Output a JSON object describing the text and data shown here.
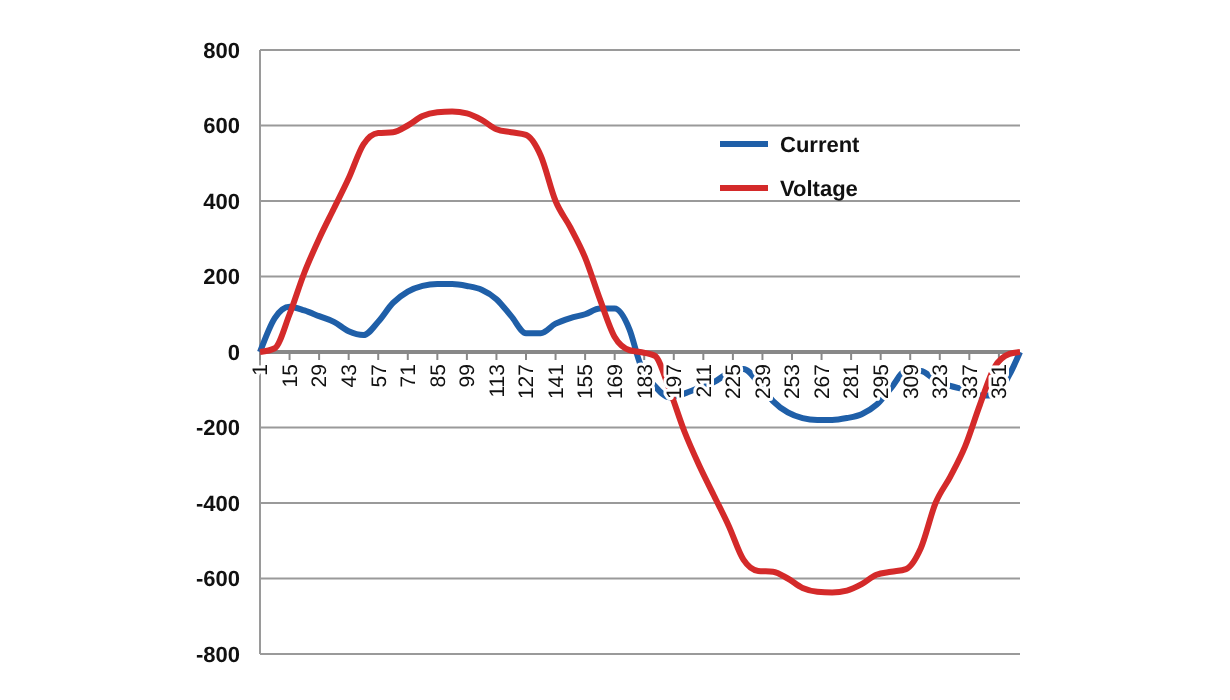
{
  "chart_data": {
    "type": "line",
    "x": [
      1,
      8,
      15,
      22,
      29,
      36,
      43,
      50,
      57,
      64,
      71,
      78,
      85,
      92,
      99,
      106,
      113,
      120,
      127,
      134,
      141,
      148,
      155,
      162,
      169,
      176,
      181,
      188,
      195,
      202,
      209,
      216,
      223,
      230,
      237,
      244,
      251,
      258,
      265,
      272,
      279,
      286,
      293,
      300,
      307,
      314,
      321,
      328,
      335,
      342,
      349,
      356,
      361
    ],
    "series": [
      {
        "name": "Current",
        "color": "#1f5fa8",
        "values": [
          0,
          90,
          120,
          110,
          95,
          80,
          55,
          45,
          80,
          130,
          160,
          175,
          180,
          180,
          175,
          165,
          140,
          95,
          50,
          50,
          75,
          90,
          100,
          115,
          115,
          60,
          -30,
          -90,
          -120,
          -110,
          -95,
          -80,
          -55,
          -45,
          -80,
          -130,
          -160,
          -175,
          -180,
          -180,
          -175,
          -165,
          -140,
          -95,
          -50,
          -50,
          -75,
          -90,
          -100,
          -115,
          -115,
          -60,
          0
        ]
      },
      {
        "name": "Voltage",
        "color": "#d42a2a",
        "values": [
          0,
          10,
          100,
          210,
          300,
          380,
          460,
          550,
          580,
          582,
          600,
          625,
          635,
          637,
          632,
          615,
          590,
          582,
          575,
          520,
          400,
          330,
          250,
          140,
          40,
          5,
          0,
          -10,
          -100,
          -210,
          -300,
          -380,
          -460,
          -550,
          -580,
          -582,
          -600,
          -625,
          -635,
          -637,
          -632,
          -615,
          -590,
          -582,
          -575,
          -520,
          -400,
          -330,
          -250,
          -140,
          -40,
          -5,
          0
        ]
      }
    ],
    "xlim": [
      1,
      361
    ],
    "xticks": [
      1,
      15,
      29,
      43,
      57,
      71,
      85,
      99,
      113,
      127,
      141,
      155,
      169,
      183,
      197,
      211,
      225,
      239,
      253,
      267,
      281,
      295,
      309,
      323,
      337,
      351
    ],
    "ylim": [
      -800,
      800
    ],
    "yticks": [
      -800,
      -600,
      -400,
      -200,
      0,
      200,
      400,
      600,
      800
    ],
    "grid": "y",
    "legend": "top right",
    "marker": "none",
    "line_style": "solid"
  }
}
